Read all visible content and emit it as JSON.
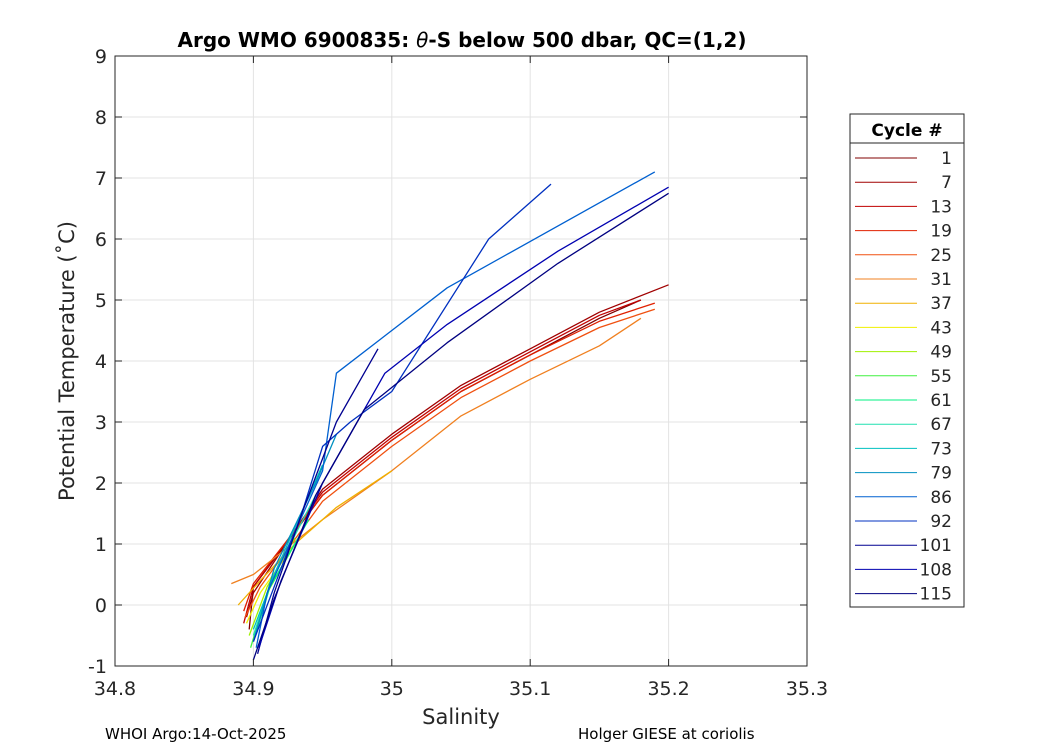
{
  "chart_data": {
    "type": "line",
    "title": "Argo WMO 6900835: θ-S below 500 dbar,  QC=(1,2)",
    "title_parts": {
      "prefix": "Argo WMO 6900835: ",
      "symbol": "θ",
      "suffix": "-S below 500 dbar,  QC=(1,2)"
    },
    "xlabel": "Salinity",
    "ylabel": "Potential Temperature (˚C)",
    "xlim": [
      34.8,
      35.3
    ],
    "ylim": [
      -1,
      9
    ],
    "xticks": [
      "34.8",
      "34.9",
      "35",
      "35.1",
      "35.2",
      "35.3"
    ],
    "yticks": [
      "-1",
      "0",
      "1",
      "2",
      "3",
      "4",
      "5",
      "6",
      "7",
      "8",
      "9"
    ],
    "grid": true,
    "legend": {
      "title": "Cycle #",
      "position": "right",
      "entries": [
        {
          "label": "1",
          "color": "#800000"
        },
        {
          "label": "7",
          "color": "#a00000"
        },
        {
          "label": "13",
          "color": "#c00000"
        },
        {
          "label": "19",
          "color": "#e02000"
        },
        {
          "label": "25",
          "color": "#f05010"
        },
        {
          "label": "31",
          "color": "#f08020"
        },
        {
          "label": "37",
          "color": "#f0b000"
        },
        {
          "label": "43",
          "color": "#f0f000"
        },
        {
          "label": "49",
          "color": "#a0f000"
        },
        {
          "label": "55",
          "color": "#40f040"
        },
        {
          "label": "61",
          "color": "#00f080"
        },
        {
          "label": "67",
          "color": "#20e0b0"
        },
        {
          "label": "73",
          "color": "#00c0c0"
        },
        {
          "label": "79",
          "color": "#0090c0"
        },
        {
          "label": "86",
          "color": "#0060d0"
        },
        {
          "label": "92",
          "color": "#0030c0"
        },
        {
          "label": "101",
          "color": "#000090"
        },
        {
          "label": "108",
          "color": "#0000b0"
        },
        {
          "label": "115",
          "color": "#000080"
        }
      ]
    },
    "series": [
      {
        "name": "1",
        "color": "#800000",
        "x": [
          34.897,
          34.9,
          34.95,
          35.0,
          35.05,
          35.1,
          35.15,
          35.18
        ],
        "y": [
          -0.4,
          0.3,
          1.8,
          2.7,
          3.5,
          4.1,
          4.7,
          5.0
        ]
      },
      {
        "name": "7",
        "color": "#a00000",
        "x": [
          34.895,
          34.9,
          34.95,
          35.0,
          35.05,
          35.1,
          35.15,
          35.2
        ],
        "y": [
          -0.2,
          0.2,
          1.9,
          2.8,
          3.6,
          4.2,
          4.8,
          5.25
        ]
      },
      {
        "name": "13",
        "color": "#c00000",
        "x": [
          34.893,
          34.9,
          34.95,
          35.0,
          35.05,
          35.1,
          35.15,
          35.18
        ],
        "y": [
          -0.3,
          0.3,
          1.85,
          2.75,
          3.55,
          4.15,
          4.75,
          5.0
        ]
      },
      {
        "name": "19",
        "color": "#e02000",
        "x": [
          34.893,
          34.9,
          34.95,
          35.0,
          35.05,
          35.1,
          35.15,
          35.19
        ],
        "y": [
          -0.1,
          0.35,
          1.8,
          2.7,
          3.5,
          4.1,
          4.65,
          4.95
        ]
      },
      {
        "name": "25",
        "color": "#f05010",
        "x": [
          34.894,
          34.905,
          34.95,
          35.0,
          35.05,
          35.1,
          35.15,
          35.19
        ],
        "y": [
          -0.2,
          0.3,
          1.7,
          2.6,
          3.4,
          4.0,
          4.55,
          4.85
        ]
      },
      {
        "name": "31",
        "color": "#f08020",
        "x": [
          34.884,
          34.9,
          34.95,
          35.0,
          35.05,
          35.1,
          35.15,
          35.18
        ],
        "y": [
          0.35,
          0.5,
          1.4,
          2.2,
          3.1,
          3.7,
          4.25,
          4.7
        ]
      },
      {
        "name": "37",
        "color": "#f0b000",
        "x": [
          34.889,
          34.905,
          34.93,
          34.96,
          35.0
        ],
        "y": [
          0.0,
          0.4,
          1.0,
          1.6,
          2.2
        ]
      },
      {
        "name": "43",
        "color": "#f0f000",
        "x": [
          34.895,
          34.905,
          34.93
        ],
        "y": [
          -0.3,
          0.2,
          1.0
        ]
      },
      {
        "name": "49",
        "color": "#a0f000",
        "x": [
          34.897,
          34.91,
          34.93
        ],
        "y": [
          -0.5,
          0.3,
          1.1
        ]
      },
      {
        "name": "55",
        "color": "#40f040",
        "x": [
          34.898,
          34.91,
          34.935
        ],
        "y": [
          -0.7,
          0.2,
          1.2
        ]
      },
      {
        "name": "61",
        "color": "#00f080",
        "x": [
          34.9,
          34.912,
          34.94
        ],
        "y": [
          -0.6,
          0.3,
          1.4
        ]
      },
      {
        "name": "67",
        "color": "#20e0b0",
        "x": [
          34.9,
          34.913,
          34.945
        ],
        "y": [
          -0.5,
          0.4,
          1.8
        ]
      },
      {
        "name": "73",
        "color": "#00c0c0",
        "x": [
          34.9,
          34.915,
          34.95
        ],
        "y": [
          -0.4,
          0.5,
          2.3
        ]
      },
      {
        "name": "79",
        "color": "#0090c0",
        "x": [
          34.9,
          34.915,
          34.945,
          34.96
        ],
        "y": [
          -0.6,
          0.6,
          2.0,
          2.8
        ]
      },
      {
        "name": "86",
        "color": "#0060d0",
        "x": [
          34.902,
          34.91,
          34.93,
          34.95,
          34.96,
          35.04,
          35.19
        ],
        "y": [
          -0.7,
          0.2,
          1.2,
          2.2,
          3.8,
          5.2,
          7.1
        ]
      },
      {
        "name": "92",
        "color": "#0030c0",
        "x": [
          34.9,
          34.915,
          34.935,
          34.95,
          34.97,
          35.0,
          35.07,
          35.115
        ],
        "y": [
          -0.6,
          0.3,
          1.5,
          2.6,
          3.0,
          3.5,
          6.0,
          6.9
        ]
      },
      {
        "name": "101",
        "color": "#000090",
        "x": [
          34.903,
          34.915,
          34.935,
          34.96,
          34.99
        ],
        "y": [
          -0.8,
          0.2,
          1.5,
          3.0,
          4.2
        ]
      },
      {
        "name": "108",
        "color": "#0000b0",
        "x": [
          34.904,
          34.92,
          34.95,
          34.995,
          35.04,
          35.12,
          35.2
        ],
        "y": [
          -0.7,
          0.4,
          2.0,
          3.8,
          4.6,
          5.8,
          6.85
        ]
      },
      {
        "name": "115",
        "color": "#000080",
        "x": [
          34.9,
          34.915,
          34.945,
          34.98,
          35.04,
          35.12,
          35.2
        ],
        "y": [
          -0.9,
          0.1,
          1.8,
          3.2,
          4.3,
          5.6,
          6.75
        ]
      }
    ]
  },
  "footer": {
    "left": "WHOI Argo:14-Oct-2025",
    "right": "Holger GIESE at coriolis"
  }
}
